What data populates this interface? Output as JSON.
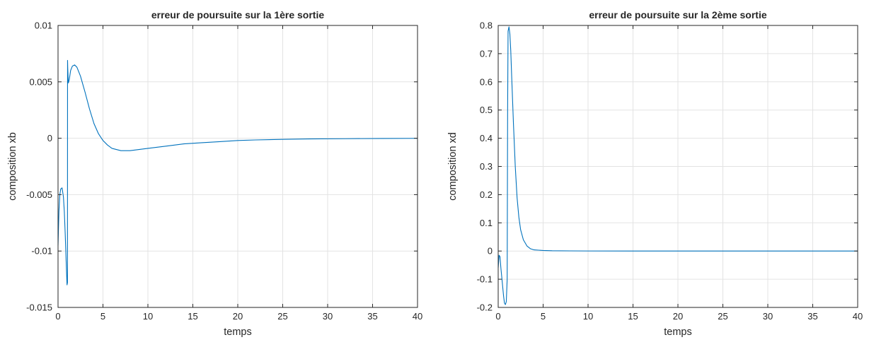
{
  "chart_data": [
    {
      "type": "line",
      "title": "erreur de poursuite sur la 1ère sortie",
      "xlabel": "temps",
      "ylabel": "composition xb",
      "xlim": [
        0,
        40
      ],
      "ylim": [
        -0.015,
        0.01
      ],
      "xticks": [
        0,
        5,
        10,
        15,
        20,
        25,
        30,
        35,
        40
      ],
      "xtick_labels": [
        "0",
        "5",
        "10",
        "15",
        "20",
        "25",
        "30",
        "35",
        "40"
      ],
      "yticks": [
        -0.015,
        -0.01,
        -0.005,
        0,
        0.005,
        0.01
      ],
      "ytick_labels": [
        "-0.015",
        "-0.01",
        "-0.005",
        "0",
        "0.005",
        "0.01"
      ],
      "grid": true,
      "line_color": "#0072bd",
      "series": [
        {
          "x": [
            0,
            0.1,
            0.2,
            0.3,
            0.45,
            0.6,
            0.7,
            0.8,
            0.9,
            1.0,
            1.05,
            1.06,
            1.08,
            1.15,
            1.25,
            1.4,
            1.6,
            1.85,
            2.1,
            2.5,
            3,
            3.5,
            4,
            4.5,
            5,
            5.5,
            6,
            7,
            8,
            9,
            10,
            12,
            14,
            16,
            18,
            20,
            22,
            25,
            28,
            32,
            36,
            40
          ],
          "y": [
            -0.0095,
            -0.0065,
            -0.005,
            -0.0045,
            -0.0044,
            -0.0052,
            -0.0065,
            -0.0085,
            -0.0108,
            -0.013,
            -0.0128,
            0.0069,
            0.0062,
            0.0049,
            0.0052,
            0.006,
            0.0064,
            0.0065,
            0.0063,
            0.0055,
            0.0041,
            0.0026,
            0.0013,
            0.0004,
            -0.0002,
            -0.0006,
            -0.0009,
            -0.0011,
            -0.0011,
            -0.001,
            -0.0009,
            -0.0007,
            -0.0005,
            -0.0004,
            -0.0003,
            -0.0002,
            -0.00015,
            -0.0001,
            -6e-05,
            -4e-05,
            -2e-05,
            -1e-05
          ]
        }
      ]
    },
    {
      "type": "line",
      "title": "erreur de poursuite sur la 2ème sortie",
      "xlabel": "temps",
      "ylabel": "composition xd",
      "xlim": [
        0,
        40
      ],
      "ylim": [
        -0.2,
        0.8
      ],
      "xticks": [
        0,
        5,
        10,
        15,
        20,
        25,
        30,
        35,
        40
      ],
      "xtick_labels": [
        "0",
        "5",
        "10",
        "15",
        "20",
        "25",
        "30",
        "35",
        "40"
      ],
      "yticks": [
        -0.2,
        -0.1,
        0,
        0.1,
        0.2,
        0.3,
        0.4,
        0.5,
        0.6,
        0.7,
        0.8
      ],
      "ytick_labels": [
        "-0.2",
        "-0.1",
        "0",
        "0.1",
        "0.2",
        "0.3",
        "0.4",
        "0.5",
        "0.6",
        "0.7",
        "0.8"
      ],
      "grid": true,
      "line_color": "#0072bd",
      "series": [
        {
          "x": [
            0,
            0.1,
            0.2,
            0.3,
            0.45,
            0.6,
            0.7,
            0.8,
            0.9,
            1.0,
            1.05,
            1.1,
            1.2,
            1.3,
            1.4,
            1.5,
            1.7,
            1.9,
            2.1,
            2.3,
            2.5,
            2.8,
            3.2,
            3.6,
            4,
            5,
            6,
            8,
            10,
            15,
            20,
            30,
            40
          ],
          "y": [
            -0.06,
            -0.015,
            -0.02,
            -0.06,
            -0.11,
            -0.16,
            -0.185,
            -0.19,
            -0.18,
            -0.1,
            0.5,
            0.78,
            0.795,
            0.77,
            0.71,
            0.62,
            0.45,
            0.3,
            0.19,
            0.12,
            0.075,
            0.04,
            0.018,
            0.008,
            0.004,
            0.002,
            0.001,
            0.0005,
            0.0002,
            0.0001,
            5e-05,
            2e-05,
            0
          ]
        }
      ]
    }
  ]
}
